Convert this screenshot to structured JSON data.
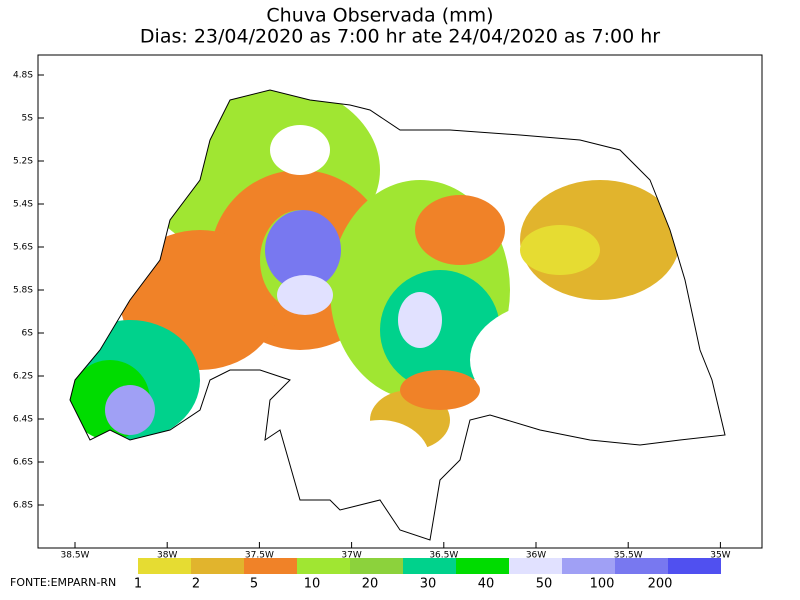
{
  "title": "Chuva Observada (mm)",
  "subtitle": "Dias: 23/04/2020 as 7:00 hr ate 24/04/2020 as 7:00 hr",
  "lat_labels": [
    "4.8S",
    "5S",
    "5.2S",
    "5.4S",
    "5.6S",
    "5.8S",
    "6S",
    "6.2S",
    "6.4S",
    "6.6S",
    "6.8S"
  ],
  "lon_labels": [
    "38.5W",
    "38W",
    "37.5W",
    "37W",
    "36.5W",
    "36W",
    "35.5W",
    "35W"
  ],
  "legend": {
    "labels": [
      1,
      2,
      5,
      10,
      20,
      30,
      40,
      50,
      100,
      200
    ],
    "colors": [
      "#e6dc32",
      "#e1b42d",
      "#f08228",
      "#a0e632",
      "#8cd23c",
      "#00d28c",
      "#00dc00",
      "#e1e1ff",
      "#a0a0f5",
      "#7878f0",
      "#5050f0"
    ]
  },
  "source": "FONTE:EMPARN-RN"
}
